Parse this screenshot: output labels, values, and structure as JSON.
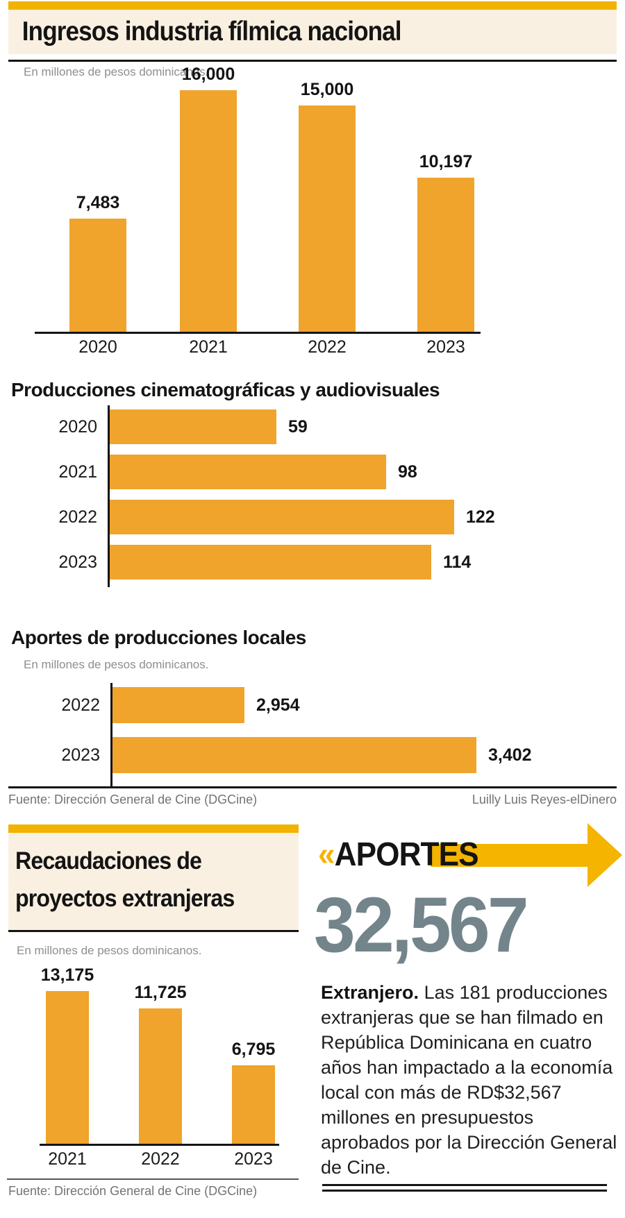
{
  "colors": {
    "bar_orange": "#F0A42C",
    "gold": "#F4B400",
    "cream": "#FAF0E1",
    "ink": "#141414",
    "subtitle_gray": "#8E8E8E",
    "source_gray": "#737373",
    "big_number_gray": "#73848B"
  },
  "header": {
    "title": "Ingresos industria fílmica nacional"
  },
  "chart_data": [
    {
      "type": "bar",
      "title": "Ingresos industria fílmica nacional",
      "subtitle": "En millones de pesos dominicanos.",
      "orientation": "vertical",
      "categories": [
        "2020",
        "2021",
        "2022",
        "2023"
      ],
      "values": [
        7483,
        16000,
        15000,
        10197
      ],
      "value_labels": [
        "7,483",
        "16,000",
        "15,000",
        "10,197"
      ],
      "ylim": [
        0,
        16000
      ],
      "grid": false,
      "legend": "none"
    },
    {
      "type": "bar",
      "title": "Producciones cinematográficas y audiovisuales",
      "subtitle": "",
      "orientation": "horizontal",
      "categories": [
        "2020",
        "2021",
        "2022",
        "2023"
      ],
      "values": [
        59,
        98,
        122,
        114
      ],
      "value_labels": [
        "59",
        "98",
        "122",
        "114"
      ],
      "xlim": [
        0,
        122
      ],
      "grid": false,
      "legend": "none"
    },
    {
      "type": "bar",
      "title": "Aportes de producciones locales",
      "subtitle": "En millones de pesos dominicanos.",
      "orientation": "horizontal",
      "categories": [
        "2022",
        "2023"
      ],
      "values": [
        2954,
        3402
      ],
      "value_labels": [
        "2,954",
        "3,402"
      ],
      "grid": false,
      "legend": "none"
    },
    {
      "type": "bar",
      "title": "Recaudaciones de proyectos extranjeras",
      "title_lines": [
        "Recaudaciones de",
        "proyectos extranjeras"
      ],
      "subtitle": "En millones de pesos dominicanos.",
      "orientation": "vertical",
      "categories": [
        "2021",
        "2022",
        "2023"
      ],
      "values": [
        13175,
        11725,
        6795
      ],
      "value_labels": [
        "13,175",
        "11,725",
        "6,795"
      ],
      "ylim": [
        0,
        13175
      ],
      "grid": false,
      "legend": "none"
    }
  ],
  "source_row": {
    "left": "Fuente: Dirección General de Cine (DGCine)",
    "right": "Luilly Luis Reyes-elDinero"
  },
  "aportes": {
    "chevrons": "«",
    "label": "APORTES",
    "big_number": "32,567",
    "lead": "Extranjero.",
    "body": "Las 181 producciones extranjeras que se han filmado en República Dominicana en cuatro años han impactado a la economía local con más de RD$32,567 millones en presupuestos aprobados por la Dirección General de Cine."
  },
  "bottom_source": "Fuente: Dirección General de Cine (DGCine)"
}
